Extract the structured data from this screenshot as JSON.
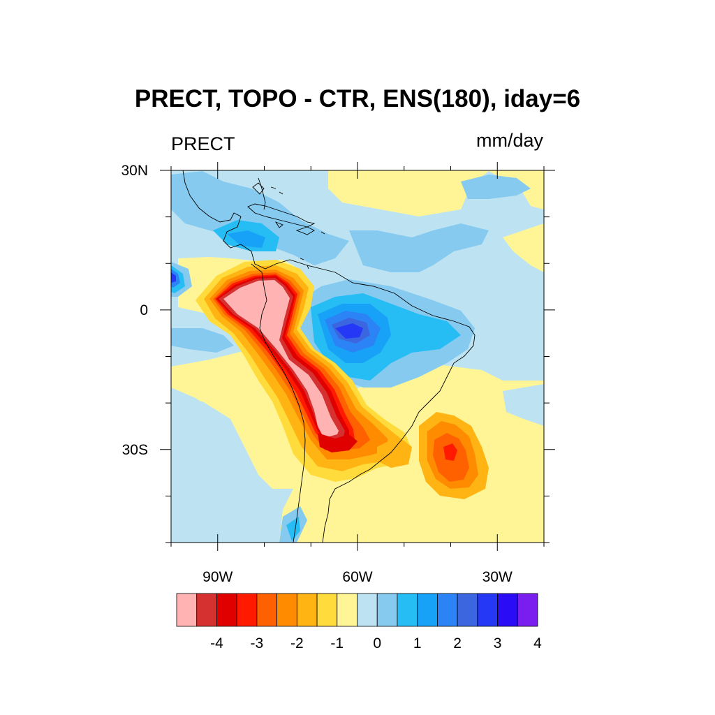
{
  "title": "PRECT, TOPO - CTR, ENS(180), iday=6",
  "left_string": "PRECT",
  "right_string": "mm/day",
  "map": {
    "projection": "cylindrical-equidistant",
    "lon_range": [
      -100,
      -20
    ],
    "lat_range": [
      -50,
      30
    ],
    "lon_ticks": [
      {
        "lon": -90,
        "label": "90W"
      },
      {
        "lon": -60,
        "label": "60W"
      },
      {
        "lon": -30,
        "label": "30W"
      }
    ],
    "lat_ticks": [
      {
        "lat": 30,
        "label": "30N"
      },
      {
        "lat": 0,
        "label": "0"
      },
      {
        "lat": -30,
        "label": "30S"
      }
    ],
    "minor_lon_ticks": [
      -100,
      -80,
      -70,
      -50,
      -40,
      -20
    ],
    "minor_lat_ticks": [
      20,
      10,
      -10,
      -20,
      -40,
      -50
    ]
  },
  "colorbar": {
    "levels": [
      -4.5,
      -4,
      -3.5,
      -3,
      -2.5,
      -2,
      -1.5,
      -1,
      -0.5,
      0,
      0.5,
      1,
      1.5,
      2,
      2.5,
      3,
      3.5,
      4
    ],
    "labels": [
      {
        "value": -4,
        "label": "-4"
      },
      {
        "value": -3,
        "label": "-3"
      },
      {
        "value": -2,
        "label": "-2"
      },
      {
        "value": -1,
        "label": "-1"
      },
      {
        "value": 0,
        "label": "0"
      },
      {
        "value": 1,
        "label": "1"
      },
      {
        "value": 2,
        "label": "2"
      },
      {
        "value": 3,
        "label": "3"
      },
      {
        "value": 4,
        "label": "4"
      }
    ],
    "colors": [
      "#ffb3b3",
      "#d63131",
      "#e00000",
      "#ff1a00",
      "#ff6000",
      "#ff8c00",
      "#ffb414",
      "#ffdc3c",
      "#fff596",
      "#bde3f2",
      "#86caf0",
      "#26bdf5",
      "#18a2f7",
      "#2b83f5",
      "#3c66e0",
      "#2538f5",
      "#2a0cf7",
      "#7a1ef0"
    ]
  },
  "field_regions": [
    {
      "name": "andes-negative",
      "value": "< -4.5 to -2",
      "approx_center": [
        -72,
        -10
      ]
    },
    {
      "name": "amazon-positive",
      "value": "2 to 3.5",
      "approx_center": [
        -60,
        -5
      ]
    },
    {
      "name": "south-atlantic-negative",
      "value": "-2.5 to -1",
      "approx_center": [
        -40,
        -32
      ]
    },
    {
      "name": "pacific-positive",
      "value": "3",
      "approx_center": [
        -100,
        7
      ]
    },
    {
      "name": "central-america-positive",
      "value": "1.5",
      "approx_center": [
        -80,
        15
      ]
    }
  ]
}
